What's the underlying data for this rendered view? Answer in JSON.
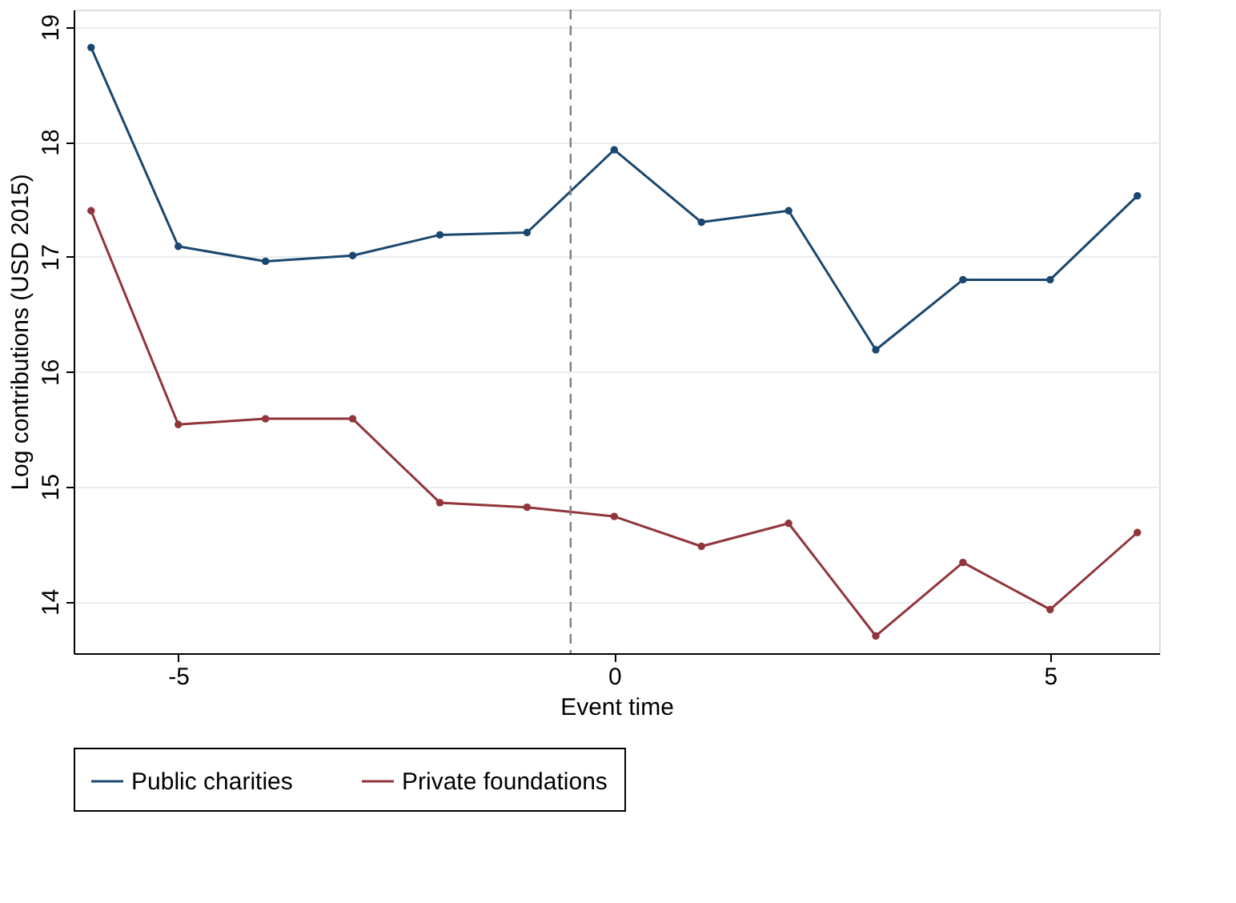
{
  "chart_data": {
    "type": "line",
    "xlabel": "Event time",
    "ylabel": "Log contributions (USD 2015)",
    "x": [
      -6,
      -5,
      -4,
      -3,
      -2,
      -1,
      0,
      1,
      2,
      3,
      4,
      5,
      6
    ],
    "series": [
      {
        "name": "Public charities",
        "color": "#1a476f",
        "values": [
          18.82,
          17.09,
          16.96,
          17.01,
          17.19,
          17.21,
          17.93,
          17.3,
          17.4,
          16.19,
          16.8,
          16.8,
          17.53
        ]
      },
      {
        "name": "Private foundations",
        "color": "#90353b",
        "values": [
          17.4,
          15.54,
          15.59,
          15.59,
          14.86,
          14.82,
          14.74,
          14.48,
          14.68,
          13.7,
          14.34,
          13.93,
          14.6
        ]
      }
    ],
    "xlim": [
      -6.2,
      6.25
    ],
    "ylim": [
      13.55,
      19.15
    ],
    "xticks": [
      -5,
      0,
      5
    ],
    "yticks": [
      14,
      15,
      16,
      17,
      18,
      19
    ],
    "ref_lines": [
      {
        "axis": "x",
        "value": -0.5,
        "color": "#808080",
        "line_style": "dashed"
      }
    ],
    "grid": "y",
    "legend": "bottom",
    "marker": "circle",
    "line_style": "solid"
  }
}
